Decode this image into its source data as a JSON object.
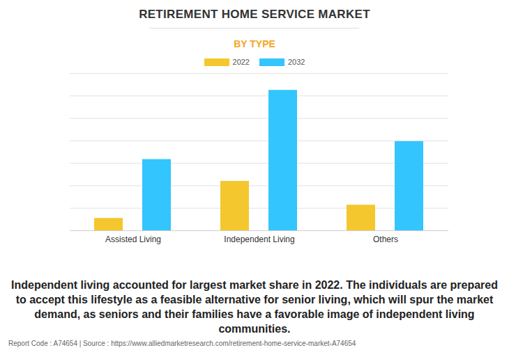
{
  "chart_data": {
    "type": "bar",
    "title": "RETIREMENT HOME SERVICE MARKET",
    "subtitle": "BY TYPE",
    "categories": [
      "Assisted Living",
      "Independent Living",
      "Others"
    ],
    "series": [
      {
        "name": "2022",
        "color": "#f5c72e",
        "values": [
          0.55,
          2.2,
          1.14
        ]
      },
      {
        "name": "2032",
        "color": "#33c5fd",
        "values": [
          3.17,
          6.25,
          3.97
        ]
      }
    ],
    "ylim": [
      0,
      7
    ],
    "yticks": [
      0,
      1,
      2,
      3,
      4,
      5,
      6,
      7
    ],
    "grid": true,
    "tick_labels": "x",
    "legend": "top",
    "annotations": [
      "Independent living accounted for largest market share in 2022. The individuals are prepared to accept this lifestyle as a feasible alternative for senior living, which will spur the market demand, as seniors and their families have a favorable image of independent living communities."
    ],
    "footer": "Report Code : A74654  |  Source : https://www.alliedmarketresearch.com/retirement-home-service-market-A74654"
  }
}
